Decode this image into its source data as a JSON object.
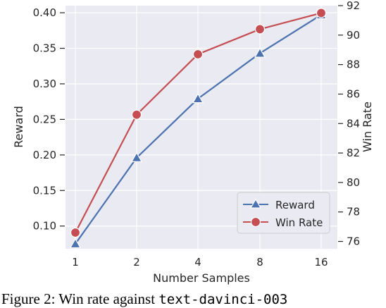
{
  "chart_data": {
    "type": "line",
    "x": [
      "1",
      "2",
      "4",
      "8",
      "16"
    ],
    "xlabel": "Number Samples",
    "ylabel_left": "Reward",
    "ylabel_right": "Win Rate",
    "ylim_left": [
      0.068,
      0.41
    ],
    "ylim_right": [
      75.5,
      92.0
    ],
    "yticks_left": [
      "0.10",
      "0.15",
      "0.20",
      "0.25",
      "0.30",
      "0.35",
      "0.40"
    ],
    "yticks_right": [
      "76",
      "78",
      "80",
      "82",
      "84",
      "86",
      "88",
      "90",
      "92"
    ],
    "grid": true,
    "legend_position": "lower-right",
    "series": [
      {
        "name": "Reward",
        "axis": "left",
        "marker": "triangle",
        "color": "#4C72B0",
        "values": [
          0.075,
          0.196,
          0.279,
          0.343,
          0.397
        ]
      },
      {
        "name": "Win Rate",
        "axis": "right",
        "marker": "circle",
        "color": "#C44E52",
        "values": [
          76.6,
          84.6,
          88.7,
          90.4,
          91.5
        ]
      }
    ]
  },
  "caption": {
    "prefix": "Figure 2: Win rate against ",
    "code": "text-davinci-003"
  }
}
